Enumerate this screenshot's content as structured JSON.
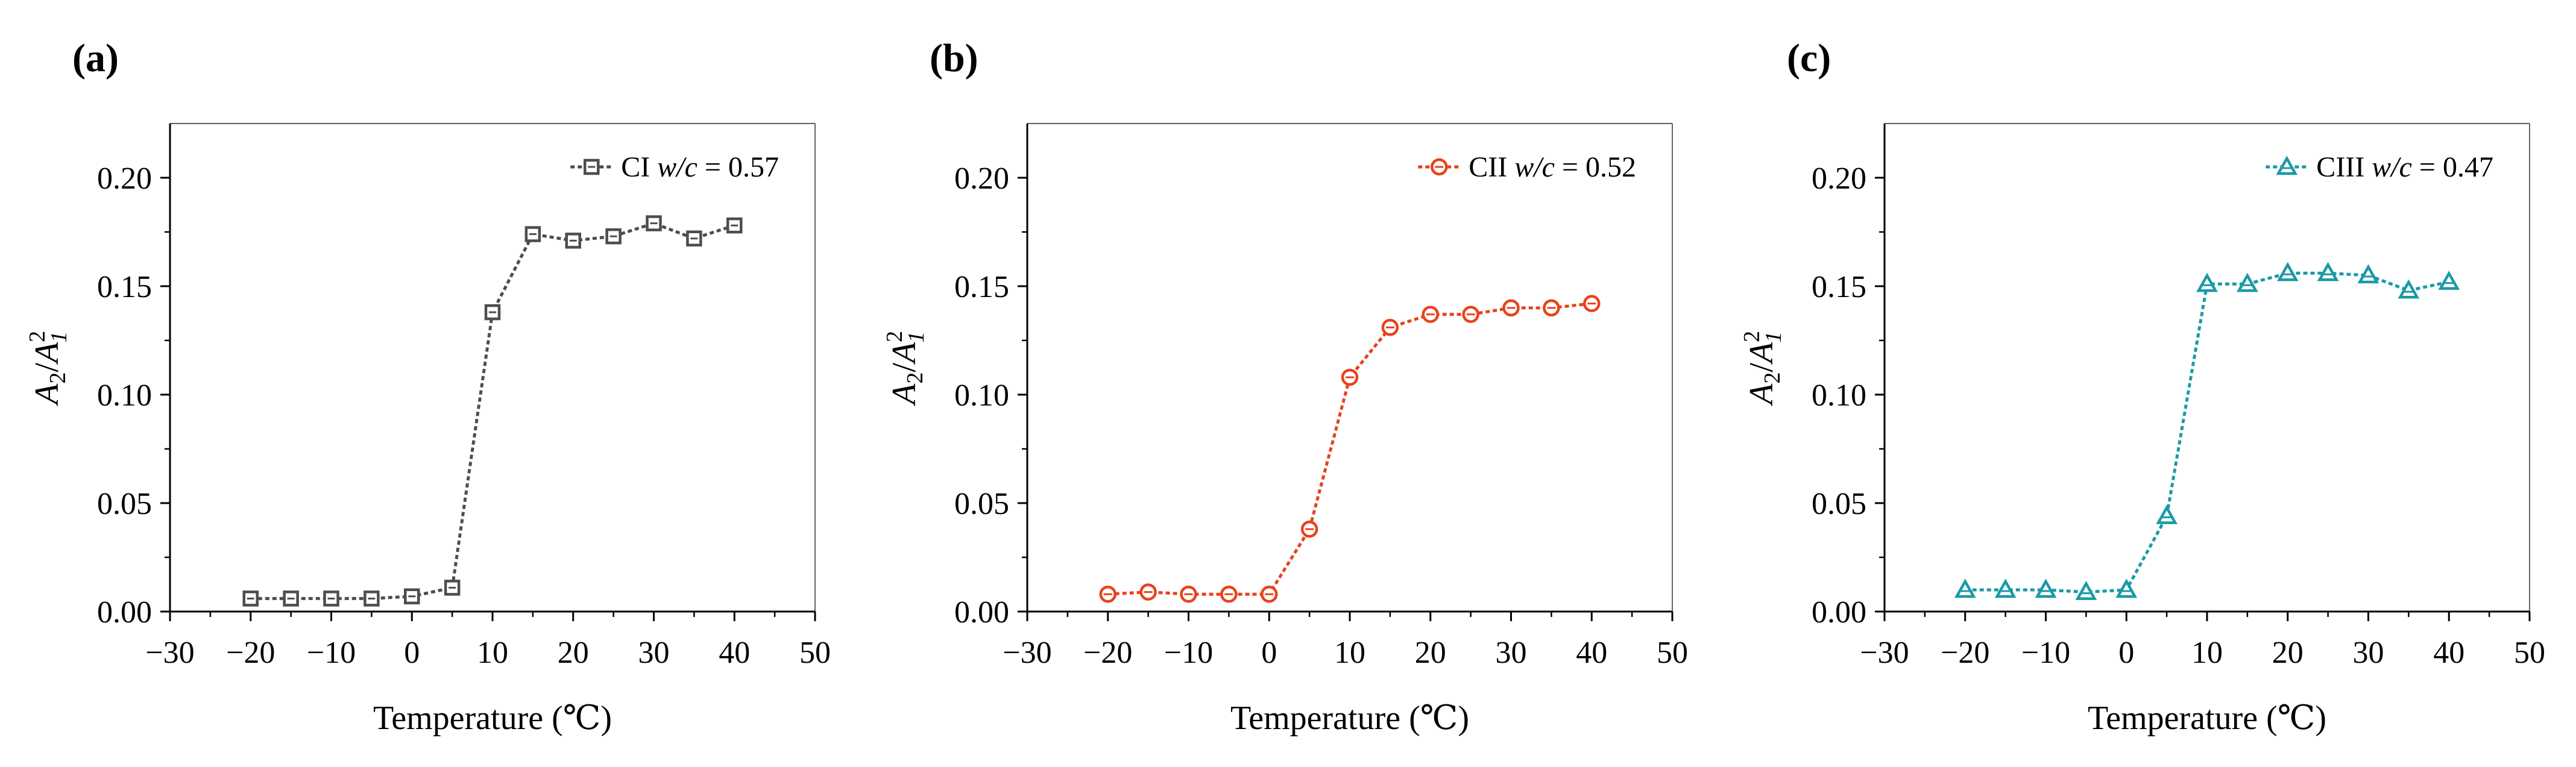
{
  "chart_data": [
    {
      "type": "line",
      "panel_label": "(a)",
      "xlabel": "Temperature (℃)",
      "ylabel": {
        "base1": "A",
        "sub1": "2",
        "slash": "/",
        "base2": "A",
        "sub2": "1",
        "sup2": "2"
      },
      "xlim": [
        -30,
        50
      ],
      "ylim": [
        0,
        0.225
      ],
      "xticks": [
        -30,
        -20,
        -10,
        0,
        10,
        20,
        30,
        40,
        50
      ],
      "xtick_labels": [
        "−30",
        "−20",
        "−10",
        "0",
        "10",
        "20",
        "30",
        "40",
        "50"
      ],
      "yticks": [
        0,
        0.05,
        0.1,
        0.15,
        0.2
      ],
      "ytick_labels": [
        "0.00",
        "0.05",
        "0.10",
        "0.15",
        "0.20"
      ],
      "legend_position": "top-right",
      "series": [
        {
          "name": "CI",
          "legend_prefix": "CI ",
          "legend_italic": "w/c",
          "legend_suffix": " = 0.57",
          "color": "#4d4d4d",
          "marker": "square",
          "x": [
            -20,
            -15,
            -10,
            -5,
            0,
            5,
            10,
            15,
            20,
            25,
            30,
            35,
            40
          ],
          "y": [
            0.006,
            0.006,
            0.006,
            0.006,
            0.007,
            0.011,
            0.138,
            0.174,
            0.171,
            0.173,
            0.179,
            0.172,
            0.178
          ]
        }
      ]
    },
    {
      "type": "line",
      "panel_label": "(b)",
      "xlabel": "Temperature (℃)",
      "ylabel": {
        "base1": "A",
        "sub1": "2",
        "slash": "/",
        "base2": "A",
        "sub2": "1",
        "sup2": "2"
      },
      "xlim": [
        -30,
        50
      ],
      "ylim": [
        0,
        0.225
      ],
      "xticks": [
        -30,
        -20,
        -10,
        0,
        10,
        20,
        30,
        40,
        50
      ],
      "xtick_labels": [
        "−30",
        "−20",
        "−10",
        "0",
        "10",
        "20",
        "30",
        "40",
        "50"
      ],
      "yticks": [
        0,
        0.05,
        0.1,
        0.15,
        0.2
      ],
      "ytick_labels": [
        "0.00",
        "0.05",
        "0.10",
        "0.15",
        "0.20"
      ],
      "legend_position": "top-right",
      "series": [
        {
          "name": "CII",
          "legend_prefix": "CII ",
          "legend_italic": "w/c",
          "legend_suffix": " = 0.52",
          "color": "#e8421c",
          "marker": "circle",
          "x": [
            -20,
            -15,
            -10,
            -5,
            0,
            5,
            10,
            15,
            20,
            25,
            30,
            35,
            40
          ],
          "y": [
            0.008,
            0.009,
            0.008,
            0.008,
            0.008,
            0.038,
            0.108,
            0.131,
            0.137,
            0.137,
            0.14,
            0.14,
            0.142
          ]
        }
      ]
    },
    {
      "type": "line",
      "panel_label": "(c)",
      "xlabel": "Temperature (℃)",
      "ylabel": {
        "base1": "A",
        "sub1": "2",
        "slash": "/",
        "base2": "A",
        "sub2": "1",
        "sup2": "2"
      },
      "xlim": [
        -30,
        50
      ],
      "ylim": [
        0,
        0.225
      ],
      "xticks": [
        -30,
        -20,
        -10,
        0,
        10,
        20,
        30,
        40,
        50
      ],
      "xtick_labels": [
        "−30",
        "−20",
        "−10",
        "0",
        "10",
        "20",
        "30",
        "40",
        "50"
      ],
      "yticks": [
        0,
        0.05,
        0.1,
        0.15,
        0.2
      ],
      "ytick_labels": [
        "0.00",
        "0.05",
        "0.10",
        "0.15",
        "0.20"
      ],
      "legend_position": "top-right",
      "series": [
        {
          "name": "CIII",
          "legend_prefix": "CIII ",
          "legend_italic": "w/c",
          "legend_suffix": " = 0.47",
          "color": "#1a9aa6",
          "marker": "triangle",
          "x": [
            -20,
            -15,
            -10,
            -5,
            0,
            5,
            10,
            15,
            20,
            25,
            30,
            35,
            40
          ],
          "y": [
            0.01,
            0.01,
            0.01,
            0.009,
            0.01,
            0.044,
            0.151,
            0.151,
            0.156,
            0.156,
            0.155,
            0.148,
            0.152
          ]
        }
      ]
    }
  ]
}
